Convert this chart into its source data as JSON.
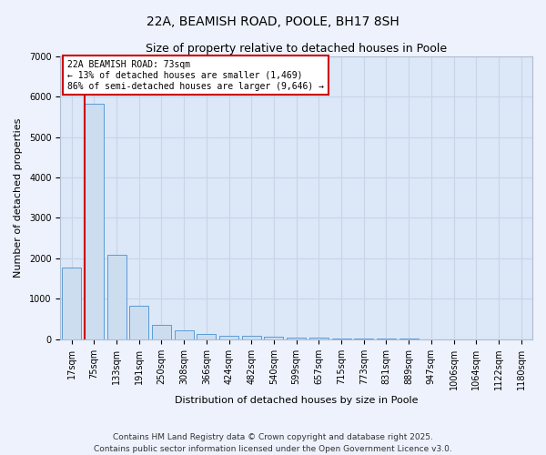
{
  "title_line1": "22A, BEAMISH ROAD, POOLE, BH17 8SH",
  "title_line2": "Size of property relative to detached houses in Poole",
  "xlabel": "Distribution of detached houses by size in Poole",
  "ylabel": "Number of detached properties",
  "categories": [
    "17sqm",
    "75sqm",
    "133sqm",
    "191sqm",
    "250sqm",
    "308sqm",
    "366sqm",
    "424sqm",
    "482sqm",
    "540sqm",
    "599sqm",
    "657sqm",
    "715sqm",
    "773sqm",
    "831sqm",
    "889sqm",
    "947sqm",
    "1006sqm",
    "1064sqm",
    "1122sqm",
    "1180sqm"
  ],
  "values": [
    1780,
    5820,
    2090,
    820,
    365,
    210,
    125,
    95,
    90,
    60,
    50,
    30,
    20,
    15,
    10,
    8,
    5,
    4,
    3,
    2,
    2
  ],
  "bar_color": "#ccddf0",
  "bar_edge_color": "#5b9bd5",
  "vline_color": "#cc0000",
  "vline_position": 0.575,
  "annotation_text": "22A BEAMISH ROAD: 73sqm\n← 13% of detached houses are smaller (1,469)\n86% of semi-detached houses are larger (9,646) →",
  "annotation_box_color": "#cc0000",
  "ylim": [
    0,
    7000
  ],
  "yticks": [
    0,
    1000,
    2000,
    3000,
    4000,
    5000,
    6000,
    7000
  ],
  "grid_color": "#c8d4e8",
  "plot_bg_color": "#dce8f8",
  "fig_bg_color": "#edf2fc",
  "footer_line1": "Contains HM Land Registry data © Crown copyright and database right 2025.",
  "footer_line2": "Contains public sector information licensed under the Open Government Licence v3.0.",
  "title_fontsize": 10,
  "subtitle_fontsize": 9,
  "xlabel_fontsize": 8,
  "ylabel_fontsize": 8,
  "tick_fontsize": 7,
  "footer_fontsize": 6.5
}
